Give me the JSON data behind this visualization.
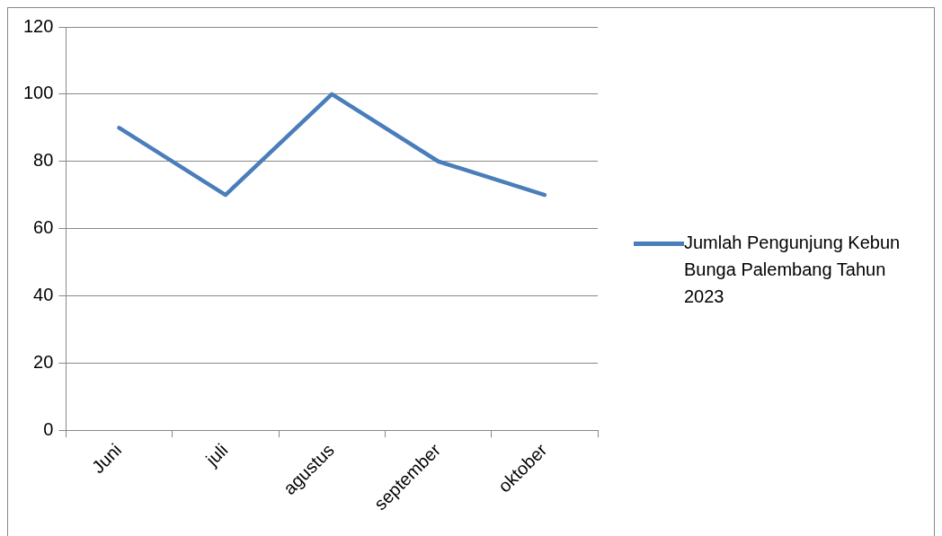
{
  "chart_data": {
    "type": "line",
    "categories": [
      "Juni",
      "juli",
      "agustus",
      "september",
      "oktober"
    ],
    "series": [
      {
        "name": "Jumlah Pengunjung Kebun Bunga Palembang Tahun 2023",
        "color": "#4a7ebb",
        "values": [
          90,
          70,
          100,
          80,
          70
        ]
      }
    ],
    "ylim": [
      0,
      120
    ],
    "yticks": [
      0,
      20,
      40,
      60,
      80,
      100,
      120
    ],
    "grid": "y",
    "legend": "right",
    "marker": "none",
    "line_style": "solid"
  }
}
